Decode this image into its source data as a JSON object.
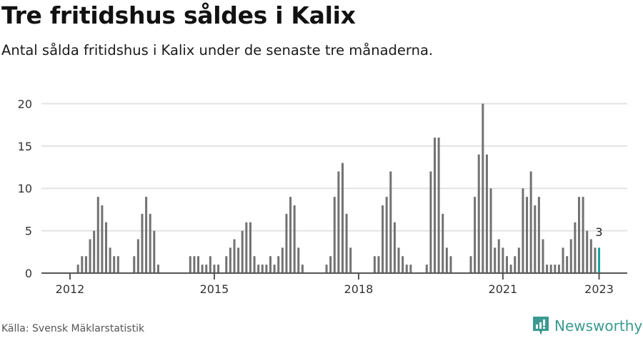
{
  "header": {
    "title": "Tre fritidshus såldes i Kalix",
    "subtitle": "Antal sålda fritidshus i Kalix under de senaste tre månaderna."
  },
  "footer": {
    "source": "Källa: Svensk Mäklarstatistik",
    "brand": "Newsworthy",
    "brand_icon": "bar-chart-speech-bubble-icon"
  },
  "colors": {
    "bar": "#727272",
    "highlight": "#1aa398",
    "grid": "#e3e3e3",
    "axis": "#555555",
    "brand": "#3a9a8f"
  },
  "chart_data": {
    "type": "bar",
    "title": "Tre fritidshus såldes i Kalix",
    "subtitle": "Antal sålda fritidshus i Kalix under de senaste tre månaderna.",
    "xlabel": "",
    "ylabel": "",
    "ylim": [
      0,
      20
    ],
    "yticks": [
      0,
      5,
      10,
      15,
      20
    ],
    "xticks": [
      "2012",
      "2015",
      "2018",
      "2021",
      "2023"
    ],
    "grid": true,
    "legend": "none",
    "annotation": {
      "label": "3",
      "month_index": 132
    },
    "month_index_origin": "Jan 2012 = 0",
    "bars": [
      [
        2,
        1
      ],
      [
        3,
        2
      ],
      [
        4,
        2
      ],
      [
        5,
        4
      ],
      [
        6,
        5
      ],
      [
        7,
        9
      ],
      [
        8,
        8
      ],
      [
        9,
        6
      ],
      [
        10,
        3
      ],
      [
        11,
        2
      ],
      [
        12,
        2
      ],
      [
        16,
        2
      ],
      [
        17,
        4
      ],
      [
        18,
        7
      ],
      [
        19,
        9
      ],
      [
        20,
        7
      ],
      [
        21,
        5
      ],
      [
        22,
        1
      ],
      [
        30,
        2
      ],
      [
        31,
        2
      ],
      [
        32,
        2
      ],
      [
        33,
        1
      ],
      [
        34,
        1
      ],
      [
        35,
        2
      ],
      [
        36,
        1
      ],
      [
        37,
        1
      ],
      [
        39,
        2
      ],
      [
        40,
        3
      ],
      [
        41,
        4
      ],
      [
        42,
        3
      ],
      [
        43,
        5
      ],
      [
        44,
        6
      ],
      [
        45,
        6
      ],
      [
        46,
        2
      ],
      [
        47,
        1
      ],
      [
        48,
        1
      ],
      [
        49,
        1
      ],
      [
        50,
        2
      ],
      [
        51,
        1
      ],
      [
        52,
        2
      ],
      [
        53,
        3
      ],
      [
        54,
        7
      ],
      [
        55,
        9
      ],
      [
        56,
        8
      ],
      [
        57,
        3
      ],
      [
        58,
        1
      ],
      [
        64,
        1
      ],
      [
        65,
        2
      ],
      [
        66,
        9
      ],
      [
        67,
        12
      ],
      [
        68,
        13
      ],
      [
        69,
        7
      ],
      [
        70,
        3
      ],
      [
        76,
        2
      ],
      [
        77,
        2
      ],
      [
        78,
        8
      ],
      [
        79,
        9
      ],
      [
        80,
        12
      ],
      [
        81,
        6
      ],
      [
        82,
        3
      ],
      [
        83,
        2
      ],
      [
        84,
        1
      ],
      [
        85,
        1
      ],
      [
        89,
        1
      ],
      [
        90,
        12
      ],
      [
        91,
        16
      ],
      [
        92,
        16
      ],
      [
        93,
        7
      ],
      [
        94,
        3
      ],
      [
        95,
        2
      ],
      [
        100,
        2
      ],
      [
        101,
        9
      ],
      [
        102,
        14
      ],
      [
        103,
        20
      ],
      [
        104,
        14
      ],
      [
        105,
        10
      ],
      [
        106,
        3
      ],
      [
        107,
        4
      ],
      [
        108,
        3
      ],
      [
        109,
        2
      ],
      [
        110,
        1
      ],
      [
        111,
        2
      ],
      [
        112,
        3
      ],
      [
        113,
        10
      ],
      [
        114,
        9
      ],
      [
        115,
        12
      ],
      [
        116,
        8
      ],
      [
        117,
        9
      ],
      [
        118,
        4
      ],
      [
        119,
        1
      ],
      [
        120,
        1
      ],
      [
        121,
        1
      ],
      [
        122,
        1
      ],
      [
        123,
        3
      ],
      [
        124,
        2
      ],
      [
        125,
        4
      ],
      [
        126,
        6
      ],
      [
        127,
        9
      ],
      [
        128,
        9
      ],
      [
        129,
        5
      ],
      [
        130,
        4
      ],
      [
        131,
        3
      ],
      [
        132,
        3
      ]
    ]
  }
}
